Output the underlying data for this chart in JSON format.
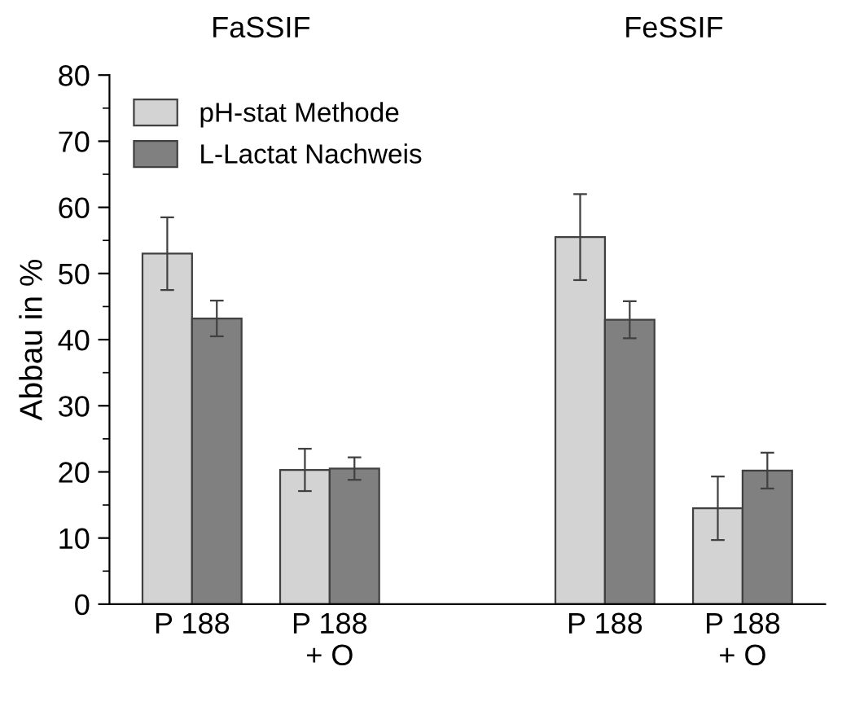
{
  "chart_data": {
    "type": "bar",
    "ylabel": "Abbau in %",
    "categories": [
      "P 188",
      "P 188\n+ O",
      null,
      "P 188",
      "P 188\n+ O"
    ],
    "series": [
      {
        "name": "pH-stat Methode",
        "color": "#d3d3d3",
        "values": [
          53,
          20.3,
          null,
          55.5,
          14.5
        ],
        "errors": [
          5.5,
          3.2,
          null,
          6.5,
          4.8
        ]
      },
      {
        "name": "L-Lactat Nachweis",
        "color": "#808080",
        "values": [
          43.2,
          20.5,
          null,
          43,
          20.2
        ],
        "errors": [
          2.7,
          1.7,
          null,
          2.8,
          2.7
        ]
      }
    ],
    "annotations": [
      "FaSSIF",
      "FeSSIF"
    ],
    "ylim": [
      0,
      80
    ],
    "yticks": [
      0,
      10,
      20,
      30,
      40,
      50,
      60,
      70,
      80
    ],
    "legend": "top left",
    "grid": false
  }
}
